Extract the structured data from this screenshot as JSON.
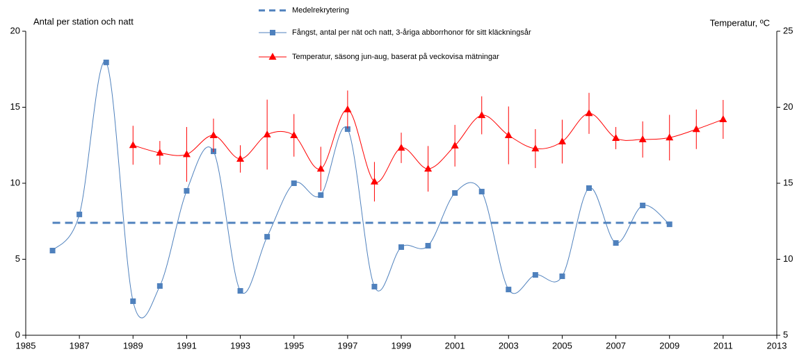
{
  "chart_data": {
    "type": "line",
    "ylabel": "Antal per station och natt",
    "y2label": "Temperatur,  ºC",
    "xlim": [
      1985,
      2013
    ],
    "xticks": [
      1985,
      1987,
      1989,
      1991,
      1993,
      1995,
      1997,
      1999,
      2001,
      2003,
      2005,
      2007,
      2009,
      2011,
      2013
    ],
    "ylim": [
      0,
      20
    ],
    "yticks": [
      0,
      5,
      10,
      15,
      20
    ],
    "y2lim": [
      5,
      25
    ],
    "y2ticks": [
      5,
      10,
      15,
      20,
      25
    ],
    "grid": false,
    "legend": "top",
    "series": [
      {
        "name": "Medelrekrytering",
        "color": "#4f81bd",
        "style": "dashed",
        "marker": "none",
        "x": [
          1986,
          2009
        ],
        "values": [
          7.4,
          7.4
        ]
      },
      {
        "name": "Fångst, antal per nät och natt, 3-åriga abborrhonor för sitt kläckningsår",
        "color": "#4f81bd",
        "style": "smooth",
        "marker": "square",
        "x": [
          1986,
          1987,
          1988,
          1989,
          1990,
          1991,
          1992,
          1993,
          1994,
          1995,
          1996,
          1997,
          1998,
          1999,
          2000,
          2001,
          2002,
          2003,
          2004,
          2005,
          2006,
          2007,
          2008,
          2009
        ],
        "values": [
          5.57,
          7.95,
          17.95,
          2.24,
          3.24,
          9.5,
          12.1,
          2.92,
          6.48,
          10.0,
          9.22,
          13.56,
          3.2,
          5.8,
          5.89,
          9.36,
          9.45,
          3.01,
          3.97,
          3.88,
          9.68,
          6.07,
          8.54,
          7.3
        ]
      },
      {
        "name": "Temperatur, säsong jun-aug, baserat på veckovisa mätningar",
        "color": "#ff0000",
        "style": "smooth",
        "marker": "triangle",
        "axis": "y2",
        "x": [
          1989,
          1990,
          1991,
          1992,
          1993,
          1994,
          1995,
          1996,
          1997,
          1998,
          1999,
          2000,
          2001,
          2002,
          2003,
          2004,
          2005,
          2006,
          2007,
          2008,
          2009,
          2010,
          2011
        ],
        "values": [
          17.5,
          17.0,
          16.9,
          18.15,
          16.6,
          18.2,
          18.15,
          15.95,
          19.85,
          15.1,
          17.33,
          15.95,
          17.47,
          19.47,
          18.15,
          17.28,
          17.74,
          19.6,
          17.97,
          17.88,
          18.0,
          18.55,
          19.2
        ],
        "errors": [
          1.28,
          0.78,
          1.8,
          1.1,
          0.9,
          2.3,
          1.4,
          1.45,
          1.25,
          1.3,
          1.0,
          1.5,
          1.37,
          1.25,
          1.9,
          1.28,
          1.44,
          1.35,
          0.73,
          1.19,
          1.5,
          1.3,
          1.28
        ]
      }
    ]
  }
}
